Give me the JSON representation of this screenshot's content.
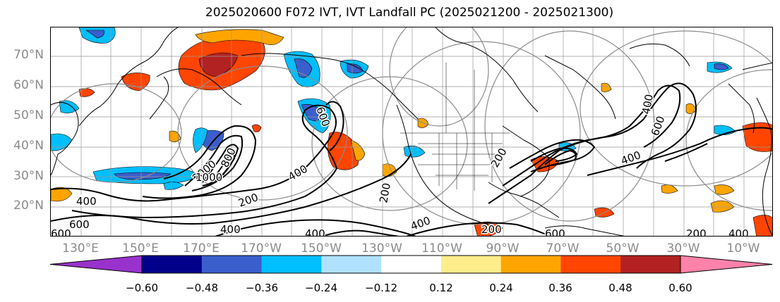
{
  "title": "2025020600 F072 IVT, IVT Landfall PC (2025021200 - 2025021300)",
  "lat_labels": [
    "70°N",
    "60°N",
    "50°N",
    "40°N",
    "30°N",
    "20°N"
  ],
  "lon_labels": [
    "130°E",
    "150°E",
    "170°E",
    "170°W",
    "150°W",
    "130°W",
    "110°W",
    "90°W",
    "70°W",
    "50°W",
    "30°W",
    "10°W"
  ],
  "colorbar": {
    "ticks": [
      "−0.60",
      "−0.48",
      "−0.36",
      "−0.24",
      "−0.12",
      "0.12",
      "0.24",
      "0.36",
      "0.48",
      "0.60"
    ],
    "colors": [
      "#9932cc",
      "#00008b",
      "#3a5fcd",
      "#00bfff",
      "#b0e2ff",
      "#ffffff",
      "#ffec8b",
      "#ffa500",
      "#ff4500",
      "#b22222",
      "#ff82ab"
    ]
  },
  "contour_labels": [
    "2000",
    "1000",
    "800",
    "600",
    "400",
    "200",
    "400",
    "600",
    "400",
    "200",
    "400",
    "600",
    "400",
    "200",
    "200",
    "600",
    "400",
    "400",
    "200",
    "600",
    "400"
  ],
  "colors": {
    "contour": "#000000",
    "grid": "#999999",
    "circles": "#8c8c8c",
    "tick_text": "#8a8a8a"
  }
}
